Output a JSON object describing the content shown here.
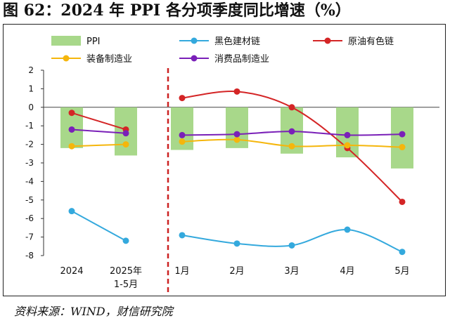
{
  "figure": {
    "title": "图 62：2024 年 PPI 各分项季度同比增速（%）",
    "source": "资料来源：WIND，财信研究院"
  },
  "colors": {
    "ppi": "#a8d88a",
    "black_metal": "#34a9dd",
    "crude_oil": "#d42526",
    "equipment": "#f5b60c",
    "consumer": "#7a20b8",
    "divider": "#cc2222"
  },
  "chart_data": {
    "type": "bar",
    "categories": [
      "2024",
      "2025年\n1-5月",
      "1月",
      "2月",
      "3月",
      "4月",
      "5月"
    ],
    "ylim": [
      -8,
      2
    ],
    "yticks": [
      2,
      1,
      0,
      -1,
      -2,
      -3,
      -4,
      -5,
      -6,
      -7,
      -8
    ],
    "grid": false,
    "legend_position": "top",
    "divider_after_category": 1,
    "series": [
      {
        "name": "PPI",
        "kind": "bar",
        "color_key": "ppi",
        "values": [
          -2.2,
          -2.6,
          -2.3,
          -2.2,
          -2.5,
          -2.7,
          -3.3
        ]
      },
      {
        "name": "黑色建材链",
        "kind": "line",
        "color_key": "black_metal",
        "values": [
          -5.6,
          -7.2,
          -6.9,
          -7.35,
          -7.45,
          -6.6,
          -7.8
        ]
      },
      {
        "name": "原油有色链",
        "kind": "line",
        "color_key": "crude_oil",
        "values": [
          -0.3,
          -1.2,
          0.5,
          0.85,
          0.0,
          -2.2,
          -5.1
        ]
      },
      {
        "name": "装备制造业",
        "kind": "line",
        "color_key": "equipment",
        "values": [
          -2.1,
          -2.0,
          -1.85,
          -1.75,
          -2.1,
          -2.05,
          -2.15
        ]
      },
      {
        "name": "消费品制造业",
        "kind": "line",
        "color_key": "consumer",
        "values": [
          -1.2,
          -1.4,
          -1.5,
          -1.45,
          -1.3,
          -1.5,
          -1.45
        ]
      }
    ]
  }
}
